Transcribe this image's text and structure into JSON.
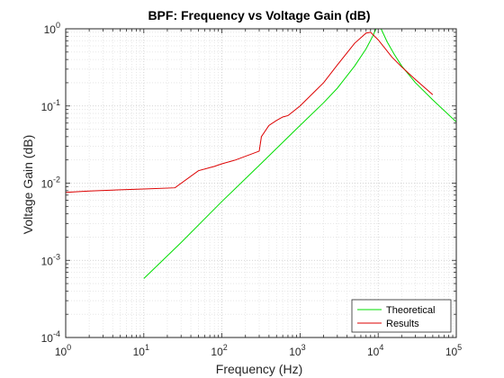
{
  "chart_data": {
    "type": "line",
    "title": "BPF: Frequency vs Voltage Gain (dB)",
    "xlabel": "Frequency (Hz)",
    "ylabel": "Voltage Gain (dB)",
    "xscale": "log",
    "yscale": "log",
    "xlim": [
      1,
      100000
    ],
    "ylim": [
      0.0001,
      1
    ],
    "x_ticks": [
      {
        "value": 1,
        "base": "10",
        "exp": "0"
      },
      {
        "value": 10,
        "base": "10",
        "exp": "1"
      },
      {
        "value": 100,
        "base": "10",
        "exp": "2"
      },
      {
        "value": 1000,
        "base": "10",
        "exp": "3"
      },
      {
        "value": 10000,
        "base": "10",
        "exp": "4"
      },
      {
        "value": 100000,
        "base": "10",
        "exp": "5"
      }
    ],
    "y_ticks": [
      {
        "value": 0.0001,
        "base": "10",
        "exp": "-4"
      },
      {
        "value": 0.001,
        "base": "10",
        "exp": "-3"
      },
      {
        "value": 0.01,
        "base": "10",
        "exp": "-2"
      },
      {
        "value": 0.1,
        "base": "10",
        "exp": "-1"
      },
      {
        "value": 1,
        "base": "10",
        "exp": "0"
      }
    ],
    "grid": true,
    "minor_grid": true,
    "legend_position": "bottom-right",
    "series": [
      {
        "name": "Theoretical",
        "color": "#00dd00",
        "points": [
          [
            10,
            0.00058
          ],
          [
            30,
            0.0017
          ],
          [
            100,
            0.0058
          ],
          [
            300,
            0.017
          ],
          [
            1000,
            0.056
          ],
          [
            2000,
            0.11
          ],
          [
            3000,
            0.17
          ],
          [
            5000,
            0.33
          ],
          [
            7000,
            0.55
          ],
          [
            8500,
            0.8
          ],
          [
            10000,
            1.15
          ],
          [
            11000,
            0.98
          ],
          [
            13000,
            0.68
          ],
          [
            16000,
            0.47
          ],
          [
            20000,
            0.33
          ],
          [
            30000,
            0.2
          ],
          [
            50000,
            0.12
          ],
          [
            100000,
            0.062
          ]
        ]
      },
      {
        "name": "Results",
        "color": "#dd0000",
        "points": [
          [
            1,
            0.0076
          ],
          [
            2,
            0.0079
          ],
          [
            5,
            0.0082
          ],
          [
            10,
            0.0084
          ],
          [
            25,
            0.0087
          ],
          [
            50,
            0.0145
          ],
          [
            80,
            0.0165
          ],
          [
            100,
            0.0178
          ],
          [
            150,
            0.02
          ],
          [
            300,
            0.026
          ],
          [
            320,
            0.04
          ],
          [
            400,
            0.056
          ],
          [
            500,
            0.065
          ],
          [
            600,
            0.072
          ],
          [
            700,
            0.075
          ],
          [
            1000,
            0.1
          ],
          [
            1500,
            0.15
          ],
          [
            2000,
            0.2
          ],
          [
            3000,
            0.34
          ],
          [
            5000,
            0.65
          ],
          [
            7000,
            0.88
          ],
          [
            8000,
            0.9
          ],
          [
            10000,
            0.72
          ],
          [
            15000,
            0.43
          ],
          [
            20000,
            0.32
          ],
          [
            30000,
            0.22
          ],
          [
            50000,
            0.14
          ]
        ]
      }
    ]
  }
}
